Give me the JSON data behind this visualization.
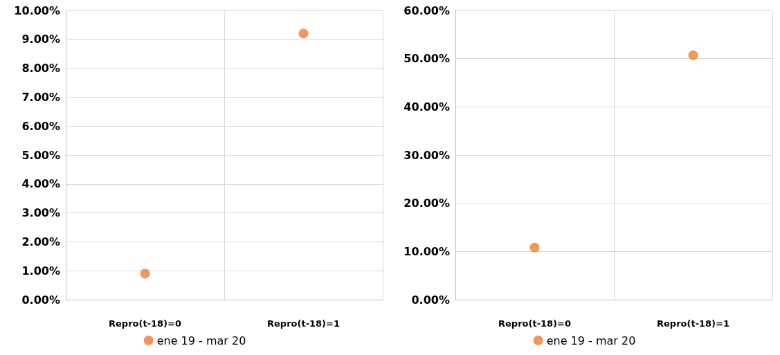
{
  "chart_data": [
    {
      "type": "scatter",
      "categories": [
        "Repro(t-18)=0",
        "Repro(t-18)=1"
      ],
      "series": [
        {
          "name": "ene 19 - mar 20",
          "color": "#ed7d31",
          "values": [
            0.9,
            9.2
          ]
        }
      ],
      "ylim": [
        0,
        10
      ],
      "yticks": [
        {
          "value": 0,
          "label": "0.00%"
        },
        {
          "value": 1,
          "label": "1.00%"
        },
        {
          "value": 2,
          "label": "2.00%"
        },
        {
          "value": 3,
          "label": "3.00%"
        },
        {
          "value": 4,
          "label": "4.00%"
        },
        {
          "value": 5,
          "label": "5.00%"
        },
        {
          "value": 6,
          "label": "6.00%"
        },
        {
          "value": 7,
          "label": "7.00%"
        },
        {
          "value": 8,
          "label": "8.00%"
        },
        {
          "value": 9,
          "label": "9.00%"
        },
        {
          "value": 10,
          "label": "10.00%"
        }
      ],
      "grid": true,
      "legend": "bottom",
      "marker": "circle"
    },
    {
      "type": "scatter",
      "categories": [
        "Repro(t-18)=0",
        "Repro(t-18)=1"
      ],
      "series": [
        {
          "name": "ene 19 - mar 20",
          "color": "#ed7d31",
          "values": [
            10.8,
            50.7
          ]
        }
      ],
      "ylim": [
        0,
        60
      ],
      "yticks": [
        {
          "value": 0,
          "label": "0.00%"
        },
        {
          "value": 10,
          "label": "10.00%"
        },
        {
          "value": 20,
          "label": "20.00%"
        },
        {
          "value": 30,
          "label": "30.00%"
        },
        {
          "value": 40,
          "label": "40.00%"
        },
        {
          "value": 50,
          "label": "50.00%"
        },
        {
          "value": 60,
          "label": "60.00%"
        }
      ],
      "grid": true,
      "legend": "bottom",
      "marker": "circle"
    }
  ]
}
